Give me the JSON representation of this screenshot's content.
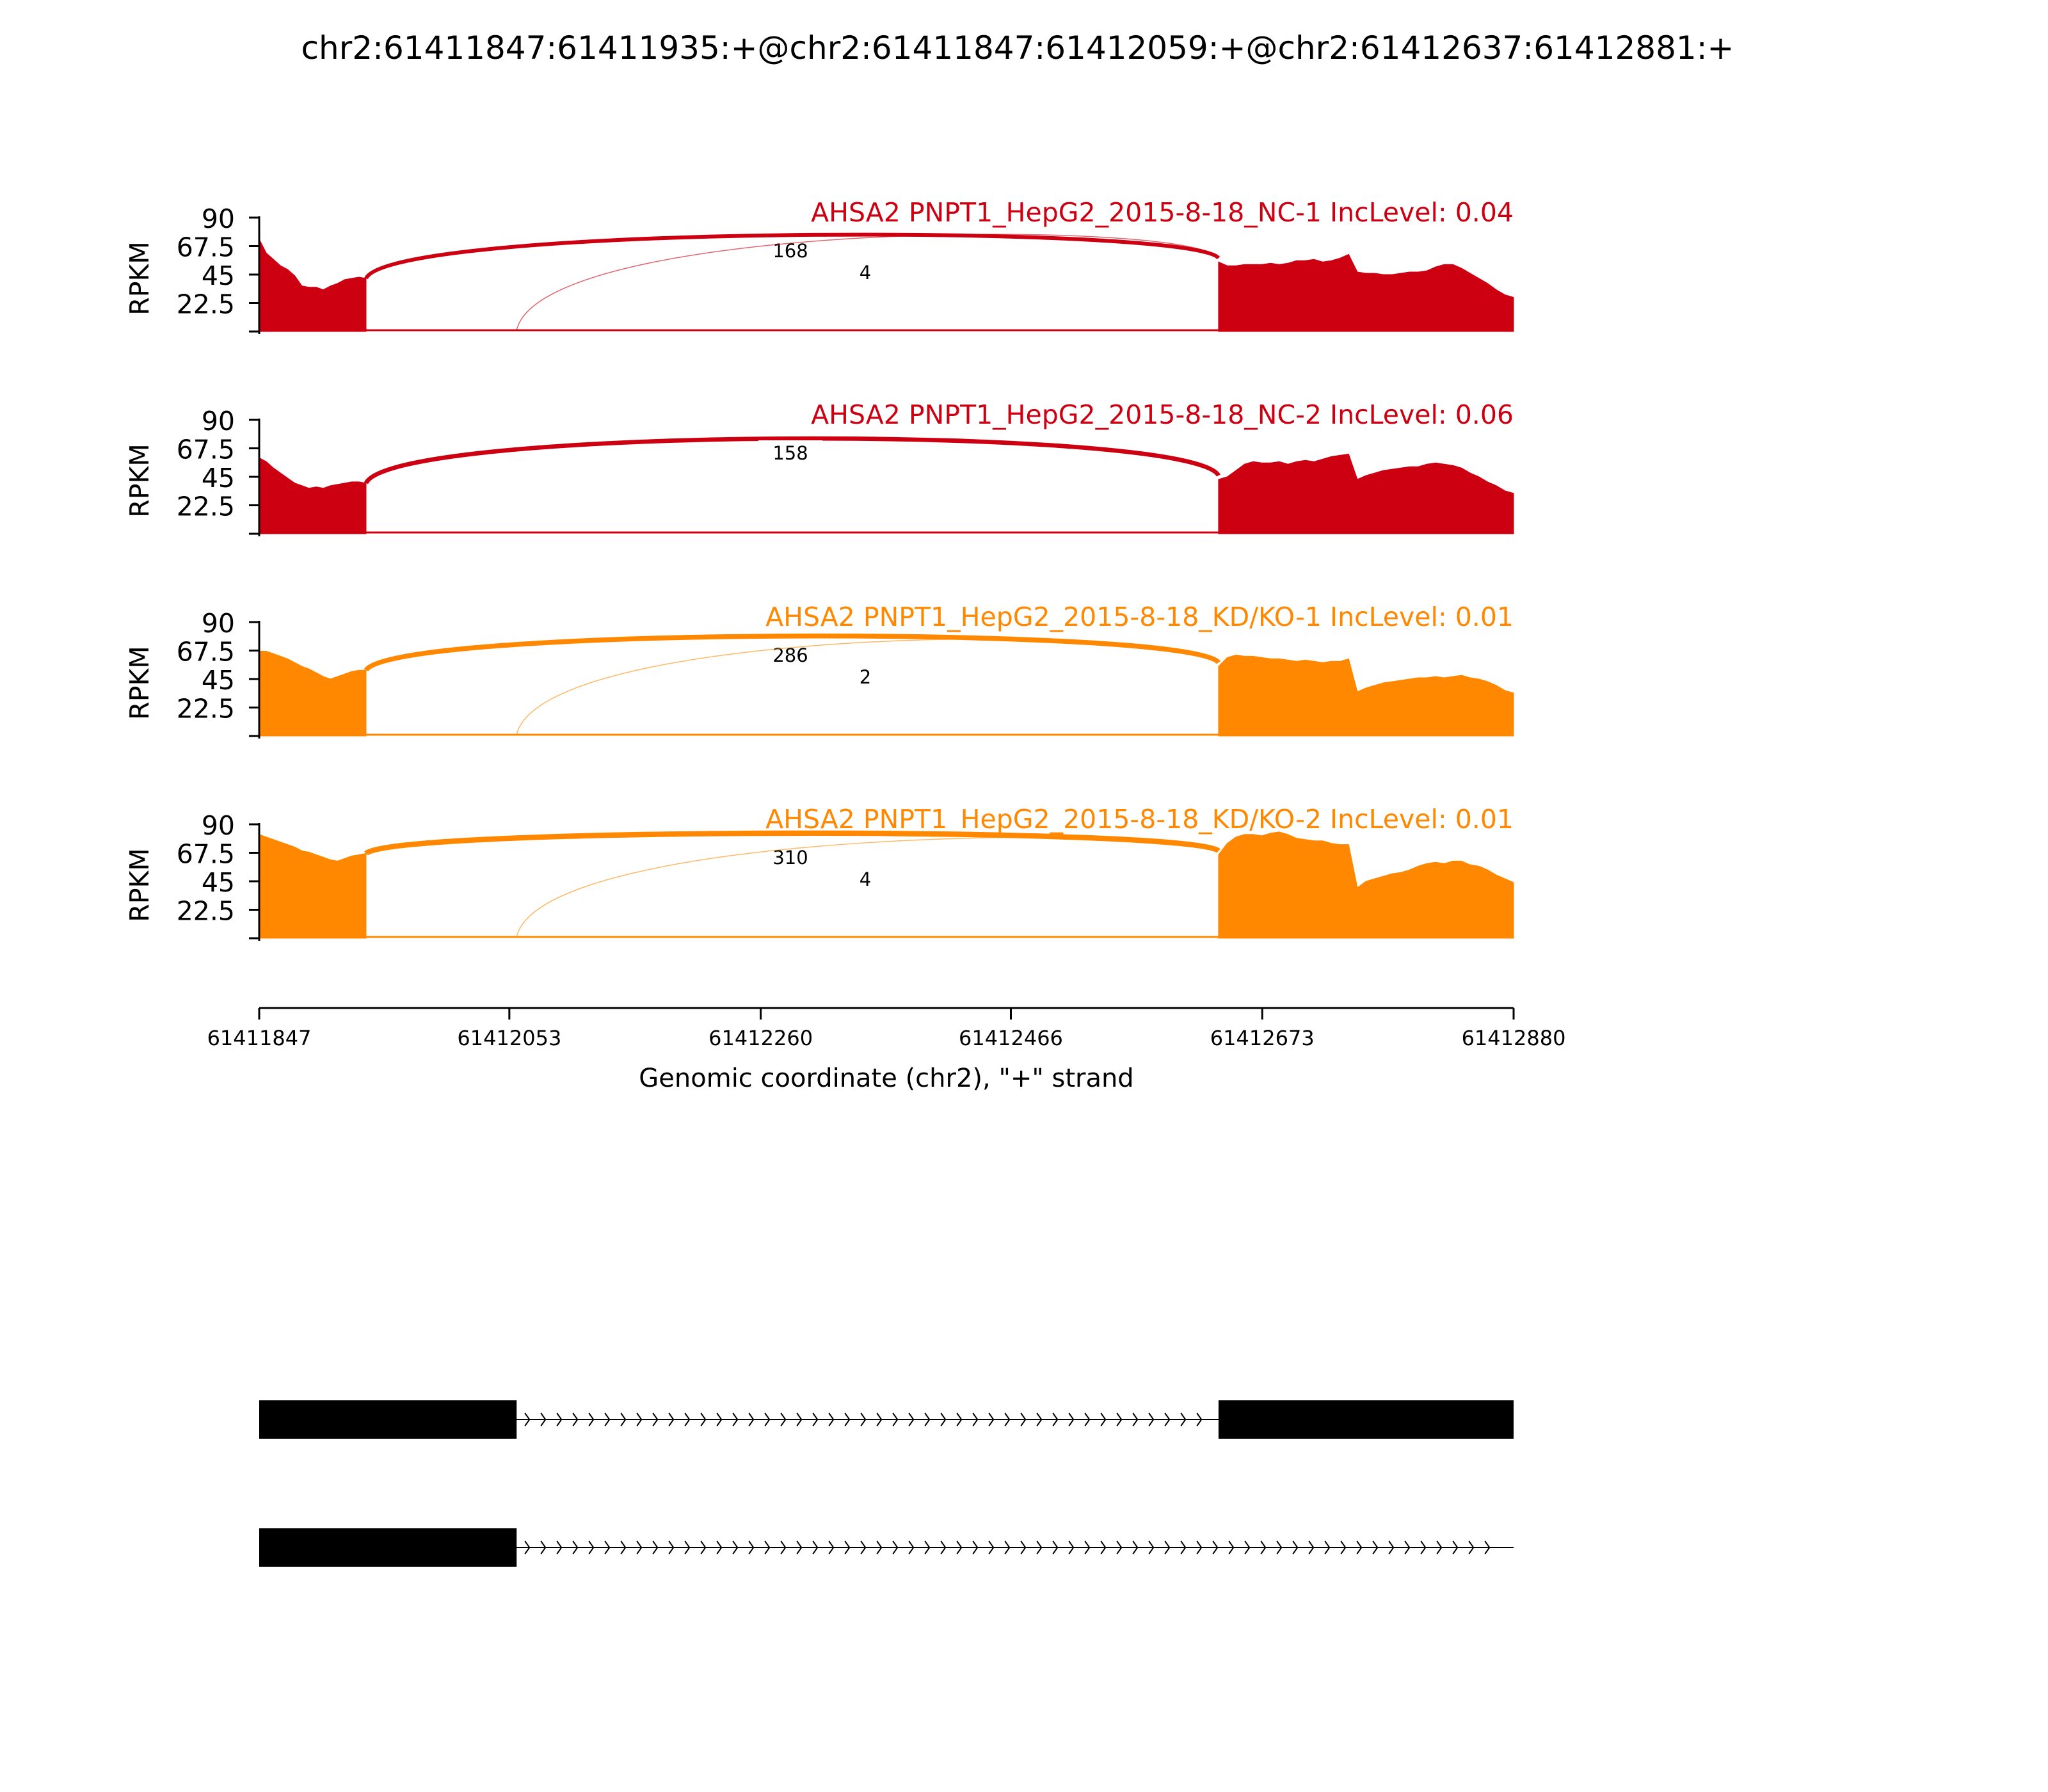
{
  "chart_data": {
    "type": "area",
    "title": "chr2:61411847:61411935:+@chr2:61411847:61412059:+@chr2:61412637:61412881:+",
    "xlabel": "Genomic coordinate (chr2), \"+\" strand",
    "ylabel": "RPKM",
    "xlim": [
      61411847,
      61412880
    ],
    "ylim": [
      0,
      90
    ],
    "x_ticks": [
      61411847,
      61412053,
      61412260,
      61412466,
      61412673,
      61412880
    ],
    "y_ticks": [
      22.5,
      45,
      67.5,
      90
    ],
    "y_tick_labels": [
      "22.5",
      "45",
      "67.5",
      "90"
    ],
    "grid": false,
    "tracks": [
      {
        "name": "AHSA2 PNPT1_HepG2_2015-8-18_NC-1 IncLevel: 0.04",
        "color": "#cc0011",
        "exon_coverage": [
          {
            "start": 61411847,
            "end": 61411935,
            "values": [
              73,
              62,
              57,
              52,
              49,
              44,
              36,
              35,
              35,
              33,
              36,
              38,
              41,
              42,
              43,
              42
            ]
          },
          {
            "start": 61412637,
            "end": 61412880,
            "values": [
              55,
              52,
              52,
              53,
              53,
              53,
              54,
              53,
              54,
              56,
              56,
              57,
              55,
              56,
              58,
              61,
              47,
              46,
              46,
              45,
              45,
              46,
              47,
              47,
              48,
              51,
              53,
              53,
              50,
              46,
              42,
              38,
              33,
              29,
              27
            ]
          }
        ],
        "junctions": [
          {
            "from": 61411935,
            "to": 61412637,
            "count": 168
          },
          {
            "from": 61412059,
            "to": 61412637,
            "count": 4
          }
        ]
      },
      {
        "name": "AHSA2 PNPT1_HepG2_2015-8-18_NC-2 IncLevel: 0.06",
        "color": "#cc0011",
        "exon_coverage": [
          {
            "start": 61411847,
            "end": 61411935,
            "values": [
              60,
              57,
              52,
              48,
              44,
              40,
              38,
              36,
              37,
              36,
              38,
              39,
              40,
              41,
              41,
              40
            ]
          },
          {
            "start": 61412637,
            "end": 61412880,
            "values": [
              43,
              45,
              50,
              55,
              57,
              56,
              56,
              57,
              55,
              57,
              58,
              57,
              59,
              61,
              62,
              63,
              43,
              46,
              48,
              50,
              51,
              52,
              53,
              53,
              55,
              56,
              55,
              54,
              52,
              48,
              45,
              41,
              38,
              34,
              32
            ]
          }
        ],
        "junctions": [
          {
            "from": 61411935,
            "to": 61412637,
            "count": 158
          }
        ]
      },
      {
        "name": "AHSA2 PNPT1_HepG2_2015-8-18_KD/KO-1 IncLevel: 0.01",
        "color": "#ff8800",
        "exon_coverage": [
          {
            "start": 61411847,
            "end": 61411935,
            "values": [
              67,
              67,
              65,
              63,
              61,
              58,
              55,
              53,
              50,
              47,
              45,
              47,
              49,
              51,
              52,
              52
            ]
          },
          {
            "start": 61412637,
            "end": 61412880,
            "values": [
              55,
              62,
              64,
              63,
              63,
              62,
              61,
              61,
              60,
              59,
              60,
              59,
              58,
              59,
              59,
              61,
              35,
              38,
              40,
              42,
              43,
              44,
              45,
              46,
              46,
              47,
              46,
              47,
              48,
              46,
              45,
              43,
              40,
              36,
              34
            ]
          }
        ],
        "junctions": [
          {
            "from": 61411935,
            "to": 61412637,
            "count": 286
          },
          {
            "from": 61412059,
            "to": 61412637,
            "count": 2
          }
        ]
      },
      {
        "name": "AHSA2 PNPT1_HepG2_2015-8-18_KD/KO-2 IncLevel: 0.01",
        "color": "#ff8800",
        "exon_coverage": [
          {
            "start": 61411847,
            "end": 61411935,
            "values": [
              82,
              80,
              78,
              76,
              74,
              72,
              69,
              68,
              66,
              64,
              62,
              61,
              63,
              65,
              66,
              67
            ]
          },
          {
            "start": 61412637,
            "end": 61412880,
            "values": [
              66,
              75,
              80,
              82,
              82,
              81,
              83,
              84,
              82,
              79,
              78,
              77,
              77,
              75,
              74,
              74,
              40,
              45,
              47,
              49,
              51,
              52,
              54,
              57,
              59,
              60,
              59,
              61,
              61,
              58,
              57,
              54,
              50,
              47,
              44
            ]
          }
        ],
        "junctions": [
          {
            "from": 61411935,
            "to": 61412637,
            "count": 310
          },
          {
            "from": 61412059,
            "to": 61412637,
            "count": 4
          }
        ]
      }
    ],
    "gene_models": [
      {
        "exons": [
          [
            61411847,
            61412059
          ],
          [
            61412637,
            61412880
          ]
        ],
        "strand": "+"
      },
      {
        "exons": [
          [
            61411847,
            61412059
          ]
        ],
        "strand": "+"
      }
    ]
  }
}
